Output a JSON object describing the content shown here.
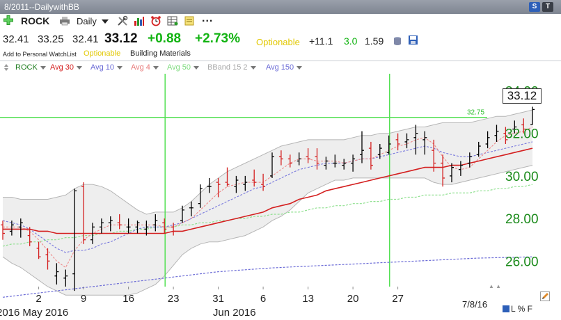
{
  "window": {
    "title": "8/2011--DailywithBB",
    "btn_s": "S",
    "btn_t": "T"
  },
  "toolbar": {
    "symbol": "ROCK",
    "period": "Daily",
    "more": "..."
  },
  "quote": {
    "open": "32.41",
    "high": "33.25",
    "low": "32.41",
    "last": "33.12",
    "change": "+0.88",
    "change_pct": "+2.73%",
    "optionable": "Optionable",
    "metric1": "+11.1",
    "metric2": "3.0",
    "metric3": "1.59"
  },
  "info": {
    "watchlist": "Add to Personal WatchList",
    "optionable": "Optionable",
    "industry": "Building Materials"
  },
  "legend": [
    {
      "label": "ROCK",
      "color": "#1a7a1a"
    },
    {
      "label": "Avg 30",
      "color": "#d42020"
    },
    {
      "label": "Avg 10",
      "color": "#6b6bd6"
    },
    {
      "label": "Avg 4",
      "color": "#e87a7a"
    },
    {
      "label": "Avg 50",
      "color": "#7ddb7d"
    },
    {
      "label": "BBand 15 2",
      "color": "#a8a8a8"
    },
    {
      "label": "Avg 150",
      "color": "#6b6bd6"
    }
  ],
  "colors": {
    "axis_green": "#1a8a1a",
    "hline": "#55e055",
    "up": "#000000",
    "down": "#d42020"
  },
  "chart_data": {
    "type": "line",
    "title": "",
    "ylim": [
      24.8,
      34.8
    ],
    "y_ticks": [
      "34.00",
      "32.00",
      "30.00",
      "28.00",
      "26.00"
    ],
    "y_tick_values": [
      34,
      32,
      30,
      28,
      26
    ],
    "x_tick_labels": [
      "2",
      "9",
      "16",
      "23",
      "31",
      "6",
      "13",
      "20",
      "27"
    ],
    "x_tick_bar_index": [
      4,
      9,
      14,
      19,
      24,
      29,
      34,
      39,
      44
    ],
    "month_labels": [
      {
        "text": "2016",
        "bar_index": -0.7
      },
      {
        "text": "May 2016",
        "bar_index": 2.2
      },
      {
        "text": "Jun 2016",
        "bar_index": 23.4
      }
    ],
    "price_label": "32.75",
    "hline_value": 32.75,
    "vlines_bar_index": [
      18,
      43
    ],
    "last_value": "33.12",
    "date_label": "7/8/16",
    "footer_flags": "L % F",
    "ohlc": [
      [
        27.7,
        27.9,
        27.0,
        27.3
      ],
      [
        27.4,
        27.9,
        27.2,
        27.7
      ],
      [
        27.6,
        28.0,
        27.1,
        27.8
      ],
      [
        27.2,
        27.6,
        26.7,
        26.9
      ],
      [
        26.6,
        26.9,
        26.1,
        26.2
      ],
      [
        26.3,
        26.6,
        25.6,
        26.0
      ],
      [
        25.3,
        25.9,
        24.9,
        25.5
      ],
      [
        25.2,
        25.6,
        24.8,
        25.3
      ],
      [
        25.4,
        29.4,
        24.6,
        29.3
      ],
      [
        29.5,
        29.7,
        26.8,
        27.0
      ],
      [
        27.0,
        27.8,
        26.8,
        27.6
      ],
      [
        27.6,
        28.0,
        27.3,
        27.8
      ],
      [
        27.8,
        28.1,
        27.4,
        27.9
      ],
      [
        27.8,
        28.2,
        27.5,
        27.7
      ],
      [
        27.6,
        28.0,
        27.3,
        27.6
      ],
      [
        27.6,
        27.9,
        27.3,
        27.8
      ],
      [
        27.5,
        27.9,
        27.2,
        27.6
      ],
      [
        27.7,
        28.2,
        27.4,
        27.9
      ],
      [
        27.8,
        28.0,
        27.3,
        27.5
      ],
      [
        27.6,
        27.8,
        27.2,
        27.4
      ],
      [
        27.9,
        28.6,
        27.8,
        28.4
      ],
      [
        28.5,
        28.8,
        28.1,
        28.5
      ],
      [
        28.7,
        29.6,
        28.5,
        29.4
      ],
      [
        29.5,
        29.9,
        29.2,
        29.5
      ],
      [
        29.7,
        29.9,
        29.0,
        29.6
      ],
      [
        29.7,
        30.4,
        29.5,
        29.6
      ],
      [
        29.5,
        30.0,
        29.2,
        29.8
      ],
      [
        29.6,
        30.0,
        29.3,
        29.7
      ],
      [
        29.8,
        30.3,
        29.5,
        29.7
      ],
      [
        29.6,
        30.1,
        29.3,
        29.5
      ],
      [
        30.0,
        31.1,
        29.9,
        30.9
      ],
      [
        30.9,
        31.2,
        30.5,
        30.8
      ],
      [
        30.8,
        31.0,
        30.4,
        30.6
      ],
      [
        30.7,
        31.1,
        30.5,
        30.8
      ],
      [
        30.9,
        31.3,
        30.6,
        30.8
      ],
      [
        30.9,
        31.3,
        30.3,
        30.6
      ],
      [
        30.5,
        30.9,
        30.3,
        30.7
      ],
      [
        30.6,
        31.0,
        30.4,
        30.6
      ],
      [
        30.5,
        30.8,
        30.3,
        30.6
      ],
      [
        30.6,
        31.0,
        30.2,
        30.8
      ],
      [
        31.0,
        32.1,
        30.6,
        31.2
      ],
      [
        31.3,
        31.6,
        30.3,
        30.5
      ],
      [
        31.0,
        31.5,
        30.8,
        31.3
      ],
      [
        31.1,
        31.9,
        31.0,
        31.5
      ],
      [
        31.7,
        32.0,
        31.2,
        31.5
      ],
      [
        31.6,
        32.0,
        31.3,
        31.7
      ],
      [
        31.8,
        32.4,
        31.0,
        32.0
      ],
      [
        31.7,
        32.1,
        31.0,
        31.8
      ],
      [
        31.2,
        31.7,
        30.2,
        30.6
      ],
      [
        30.6,
        31.0,
        29.5,
        29.9
      ],
      [
        30.0,
        30.6,
        29.7,
        30.4
      ],
      [
        30.3,
        30.7,
        30.0,
        30.5
      ],
      [
        30.6,
        31.1,
        30.4,
        30.9
      ],
      [
        31.0,
        31.6,
        30.9,
        31.4
      ],
      [
        31.5,
        32.1,
        31.3,
        31.8
      ],
      [
        31.9,
        32.4,
        31.6,
        32.1
      ],
      [
        32.0,
        32.3,
        31.5,
        31.7
      ],
      [
        32.2,
        32.6,
        32.0,
        32.3
      ],
      [
        32.4,
        32.7,
        32.0,
        32.2
      ],
      [
        32.41,
        33.25,
        32.41,
        33.12
      ]
    ],
    "series": [
      {
        "name": "Avg 30",
        "values": [
          27.5,
          27.5,
          27.5,
          27.5,
          27.4,
          27.4,
          27.3,
          27.3,
          27.3,
          27.3,
          27.3,
          27.3,
          27.3,
          27.3,
          27.3,
          27.3,
          27.3,
          27.3,
          27.3,
          27.4,
          27.4,
          27.5,
          27.6,
          27.7,
          27.8,
          27.9,
          28.0,
          28.1,
          28.2,
          28.3,
          28.5,
          28.6,
          28.7,
          28.9,
          29.0,
          29.1,
          29.3,
          29.4,
          29.5,
          29.6,
          29.7,
          29.8,
          29.9,
          30.0,
          30.1,
          30.2,
          30.3,
          30.4,
          30.4,
          30.4,
          30.5,
          30.5,
          30.6,
          30.7,
          30.8,
          30.9,
          31.0,
          31.1,
          31.2,
          31.3
        ]
      },
      {
        "name": "Avg 10",
        "values": [
          27.9,
          27.8,
          27.7,
          27.5,
          27.2,
          26.9,
          26.6,
          26.4,
          26.5,
          26.5,
          26.6,
          26.8,
          26.9,
          27.1,
          27.3,
          27.5,
          27.6,
          27.6,
          27.6,
          27.7,
          27.8,
          28.0,
          28.2,
          28.4,
          28.6,
          28.8,
          29.0,
          29.2,
          29.4,
          29.5,
          29.7,
          29.9,
          30.1,
          30.3,
          30.4,
          30.5,
          30.6,
          30.6,
          30.6,
          30.7,
          30.8,
          30.8,
          30.9,
          31.0,
          31.1,
          31.2,
          31.3,
          31.4,
          31.3,
          31.1,
          31.0,
          30.9,
          30.9,
          31.0,
          31.1,
          31.2,
          31.3,
          31.4,
          31.5,
          31.6
        ]
      },
      {
        "name": "Avg 4",
        "values": [
          27.6,
          27.6,
          27.6,
          27.4,
          27.0,
          26.5,
          26.0,
          25.7,
          26.5,
          27.0,
          27.3,
          27.5,
          27.7,
          27.7,
          27.7,
          27.7,
          27.7,
          27.7,
          27.6,
          27.6,
          27.8,
          28.0,
          28.4,
          28.8,
          29.2,
          29.5,
          29.6,
          29.7,
          29.7,
          29.7,
          30.0,
          30.3,
          30.6,
          30.8,
          30.8,
          30.7,
          30.7,
          30.7,
          30.6,
          30.7,
          30.8,
          30.8,
          31.0,
          31.2,
          31.4,
          31.5,
          31.7,
          31.8,
          31.5,
          30.9,
          30.4,
          30.3,
          30.4,
          30.8,
          31.2,
          31.6,
          31.9,
          32.0,
          32.1,
          32.3
        ]
      },
      {
        "name": "Avg 50",
        "values": [
          26.7,
          26.8,
          26.8,
          26.9,
          26.9,
          27.0,
          27.0,
          27.1,
          27.1,
          27.2,
          27.2,
          27.3,
          27.3,
          27.4,
          27.4,
          27.5,
          27.5,
          27.6,
          27.6,
          27.6,
          27.7,
          27.7,
          27.8,
          27.8,
          27.9,
          27.9,
          28.0,
          28.0,
          28.1,
          28.1,
          28.2,
          28.2,
          28.3,
          28.3,
          28.4,
          28.5,
          28.5,
          28.6,
          28.6,
          28.7,
          28.7,
          28.8,
          28.8,
          28.9,
          28.9,
          29.0,
          29.0,
          29.1,
          29.1,
          29.1,
          29.2,
          29.2,
          29.2,
          29.3,
          29.3,
          29.4,
          29.4,
          29.5,
          29.5,
          29.6
        ]
      },
      {
        "name": "Avg 150",
        "values": [
          24.3,
          24.35,
          24.4,
          24.45,
          24.5,
          24.55,
          24.6,
          24.65,
          24.7,
          24.75,
          24.8,
          24.85,
          24.9,
          24.95,
          25.0,
          25.05,
          25.1,
          25.15,
          25.2,
          25.25,
          25.3,
          25.35,
          25.4,
          25.45,
          25.5,
          25.53,
          25.56,
          25.59,
          25.62,
          25.65,
          25.68,
          25.7,
          25.72,
          25.74,
          25.76,
          25.78,
          25.8,
          25.82,
          25.84,
          25.86,
          25.88,
          25.9,
          25.92,
          25.94,
          25.96,
          25.98,
          26.0,
          26.02,
          26.04,
          26.06,
          26.08,
          26.1,
          26.12,
          26.14,
          26.15,
          26.16,
          26.17,
          26.18,
          26.19,
          26.2
        ]
      },
      {
        "name": "BBand upper",
        "values": [
          29.0,
          29.0,
          28.9,
          28.9,
          28.9,
          28.9,
          29.0,
          29.1,
          29.4,
          29.6,
          29.6,
          29.5,
          29.3,
          29.0,
          28.7,
          28.4,
          28.2,
          28.3,
          28.3,
          28.3,
          28.5,
          28.8,
          29.2,
          29.6,
          29.9,
          30.2,
          30.4,
          30.6,
          30.8,
          31.0,
          31.2,
          31.4,
          31.5,
          31.6,
          31.7,
          31.7,
          31.7,
          31.7,
          31.7,
          31.8,
          31.9,
          31.9,
          32.0,
          32.0,
          32.1,
          32.2,
          32.3,
          32.3,
          32.4,
          32.5,
          32.5,
          32.5,
          32.5,
          32.6,
          32.7,
          32.8,
          32.8,
          32.9,
          33.0,
          33.1
        ]
      },
      {
        "name": "BBand lower",
        "values": [
          26.2,
          25.9,
          25.7,
          25.4,
          25.1,
          24.8,
          24.6,
          24.4,
          24.4,
          24.4,
          24.4,
          24.4,
          24.4,
          24.4,
          24.4,
          24.5,
          24.7,
          24.9,
          25.3,
          25.8,
          26.3,
          26.6,
          26.8,
          26.9,
          26.9,
          27.0,
          27.1,
          27.2,
          27.4,
          27.6,
          27.9,
          28.1,
          28.4,
          28.8,
          29.2,
          29.4,
          29.6,
          29.8,
          29.8,
          29.9,
          29.9,
          29.9,
          29.9,
          29.9,
          29.9,
          29.9,
          29.9,
          29.9,
          29.7,
          29.6,
          29.6,
          29.7,
          29.8,
          29.9,
          30.0,
          30.1,
          30.2,
          30.3,
          30.4,
          30.5
        ]
      }
    ]
  }
}
